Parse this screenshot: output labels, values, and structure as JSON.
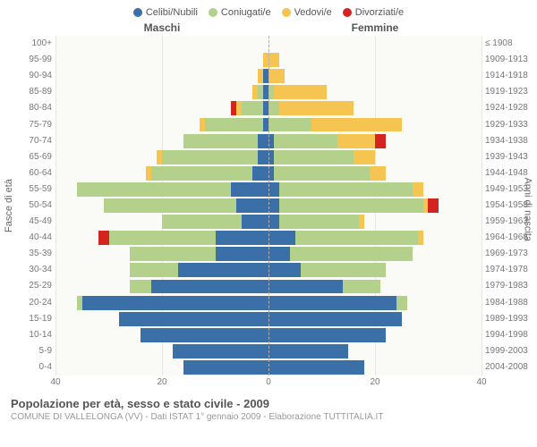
{
  "legend": [
    {
      "label": "Celibi/Nubili",
      "color": "#3a6fa8"
    },
    {
      "label": "Coniugati/e",
      "color": "#b3d18a"
    },
    {
      "label": "Vedovi/e",
      "color": "#f5c451"
    },
    {
      "label": "Divorziati/e",
      "color": "#d42420"
    }
  ],
  "side_labels": {
    "left": "Maschi",
    "right": "Femmine"
  },
  "axis_labels": {
    "left": "Fasce di età",
    "right": "Anni di nascita"
  },
  "x_axis": {
    "max": 40,
    "ticks": [
      40,
      20,
      0,
      20,
      40
    ]
  },
  "chart_bg": "#fafaf7",
  "grid_color": "#e8e8e2",
  "bar_gap_ratio": 0.12,
  "rows": [
    {
      "age": "100+",
      "birth": "≤ 1908",
      "m": [
        0,
        0,
        0,
        0
      ],
      "f": [
        0,
        0,
        0,
        0
      ]
    },
    {
      "age": "95-99",
      "birth": "1909-1913",
      "m": [
        0,
        0,
        1,
        0
      ],
      "f": [
        0,
        0,
        2,
        0
      ]
    },
    {
      "age": "90-94",
      "birth": "1914-1918",
      "m": [
        1,
        0,
        1,
        0
      ],
      "f": [
        0,
        0,
        3,
        0
      ]
    },
    {
      "age": "85-89",
      "birth": "1919-1923",
      "m": [
        1,
        1,
        1,
        0
      ],
      "f": [
        0,
        1,
        10,
        0
      ]
    },
    {
      "age": "80-84",
      "birth": "1924-1928",
      "m": [
        1,
        4,
        1,
        1
      ],
      "f": [
        0,
        2,
        14,
        0
      ]
    },
    {
      "age": "75-79",
      "birth": "1929-1933",
      "m": [
        1,
        11,
        1,
        0
      ],
      "f": [
        0,
        8,
        17,
        0
      ]
    },
    {
      "age": "70-74",
      "birth": "1934-1938",
      "m": [
        2,
        14,
        0,
        0
      ],
      "f": [
        1,
        12,
        7,
        2
      ]
    },
    {
      "age": "65-69",
      "birth": "1939-1943",
      "m": [
        2,
        18,
        1,
        0
      ],
      "f": [
        1,
        15,
        4,
        0
      ]
    },
    {
      "age": "60-64",
      "birth": "1944-1948",
      "m": [
        3,
        19,
        1,
        0
      ],
      "f": [
        1,
        18,
        3,
        0
      ]
    },
    {
      "age": "55-59",
      "birth": "1949-1953",
      "m": [
        7,
        29,
        0,
        0
      ],
      "f": [
        2,
        25,
        2,
        0
      ]
    },
    {
      "age": "50-54",
      "birth": "1954-1958",
      "m": [
        6,
        25,
        0,
        0
      ],
      "f": [
        2,
        27,
        1,
        2
      ]
    },
    {
      "age": "45-49",
      "birth": "1959-1963",
      "m": [
        5,
        15,
        0,
        0
      ],
      "f": [
        2,
        15,
        1,
        0
      ]
    },
    {
      "age": "40-44",
      "birth": "1964-1968",
      "m": [
        10,
        20,
        0,
        2
      ],
      "f": [
        5,
        23,
        1,
        0
      ]
    },
    {
      "age": "35-39",
      "birth": "1969-1973",
      "m": [
        10,
        16,
        0,
        0
      ],
      "f": [
        4,
        23,
        0,
        0
      ]
    },
    {
      "age": "30-34",
      "birth": "1974-1978",
      "m": [
        17,
        9,
        0,
        0
      ],
      "f": [
        6,
        16,
        0,
        0
      ]
    },
    {
      "age": "25-29",
      "birth": "1979-1983",
      "m": [
        22,
        4,
        0,
        0
      ],
      "f": [
        14,
        7,
        0,
        0
      ]
    },
    {
      "age": "20-24",
      "birth": "1984-1988",
      "m": [
        35,
        1,
        0,
        0
      ],
      "f": [
        24,
        2,
        0,
        0
      ]
    },
    {
      "age": "15-19",
      "birth": "1989-1993",
      "m": [
        28,
        0,
        0,
        0
      ],
      "f": [
        25,
        0,
        0,
        0
      ]
    },
    {
      "age": "10-14",
      "birth": "1994-1998",
      "m": [
        24,
        0,
        0,
        0
      ],
      "f": [
        22,
        0,
        0,
        0
      ]
    },
    {
      "age": "5-9",
      "birth": "1999-2003",
      "m": [
        18,
        0,
        0,
        0
      ],
      "f": [
        15,
        0,
        0,
        0
      ]
    },
    {
      "age": "0-4",
      "birth": "2004-2008",
      "m": [
        16,
        0,
        0,
        0
      ],
      "f": [
        18,
        0,
        0,
        0
      ]
    }
  ],
  "footer": {
    "title": "Popolazione per età, sesso e stato civile - 2009",
    "sub": "COMUNE DI VALLELONGA (VV) - Dati ISTAT 1° gennaio 2009 - Elaborazione TUTTITALIA.IT"
  }
}
